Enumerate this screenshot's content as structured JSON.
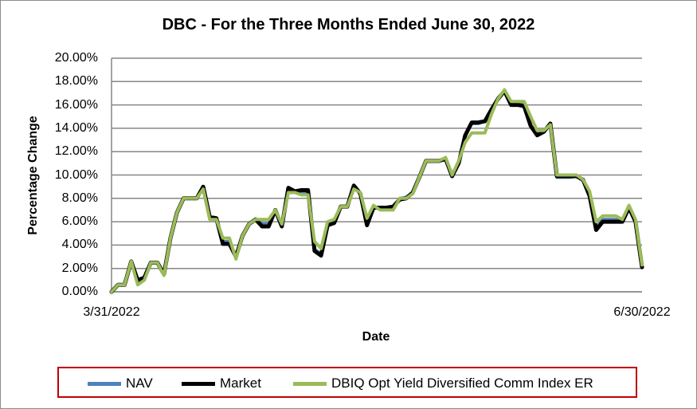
{
  "chart_data": {
    "type": "line",
    "title": "DBC - For the Three Months Ended June 30, 2022",
    "xlabel": "Date",
    "ylabel": "Percentage Change",
    "x_tick_labels": [
      "3/31/2022",
      "6/30/2022"
    ],
    "y_tick_labels": [
      "0.00%",
      "2.00%",
      "4.00%",
      "6.00%",
      "8.00%",
      "10.00%",
      "12.00%",
      "14.00%",
      "16.00%",
      "18.00%",
      "20.00%"
    ],
    "ylim": [
      0,
      20
    ],
    "grid": "horizontal",
    "legend_position": "bottom",
    "series": [
      {
        "name": "NAV",
        "color": "#4f81bd",
        "values": [
          0.0,
          0.6,
          0.6,
          2.6,
          0.8,
          1.0,
          2.5,
          2.5,
          1.5,
          4.6,
          6.8,
          8.0,
          8.0,
          8.0,
          9.0,
          6.3,
          6.3,
          4.3,
          4.3,
          3.0,
          4.8,
          5.8,
          6.2,
          5.8,
          5.8,
          6.9,
          5.8,
          8.8,
          8.5,
          8.5,
          8.5,
          3.6,
          3.3,
          5.8,
          6.0,
          7.3,
          7.3,
          9.1,
          8.4,
          6.0,
          7.3,
          7.1,
          7.1,
          7.2,
          8.0,
          8.1,
          8.5,
          9.8,
          11.2,
          11.2,
          11.2,
          11.3,
          10.0,
          11.0,
          13.4,
          14.4,
          14.4,
          14.6,
          15.6,
          16.6,
          17.2,
          16.1,
          16.1,
          16.0,
          14.2,
          13.5,
          13.8,
          14.3,
          9.8,
          9.8,
          9.8,
          9.9,
          9.5,
          8.2,
          5.5,
          6.2,
          6.2,
          6.2,
          6.0,
          7.3,
          6.1,
          2.2
        ]
      },
      {
        "name": "Market",
        "color": "#000000",
        "values": [
          0.0,
          0.6,
          0.6,
          2.6,
          1.0,
          1.2,
          2.5,
          2.5,
          1.5,
          4.6,
          6.8,
          8.0,
          8.0,
          8.0,
          9.0,
          6.4,
          6.3,
          4.1,
          4.1,
          3.0,
          4.8,
          5.8,
          6.2,
          5.6,
          5.6,
          7.0,
          5.6,
          8.9,
          8.6,
          8.7,
          8.7,
          3.5,
          3.1,
          5.7,
          5.9,
          7.3,
          7.3,
          9.1,
          8.4,
          5.7,
          7.2,
          7.2,
          7.2,
          7.3,
          7.9,
          8.0,
          8.5,
          9.8,
          11.2,
          11.2,
          11.2,
          11.4,
          9.9,
          11.0,
          13.4,
          14.5,
          14.5,
          14.6,
          15.6,
          16.5,
          17.2,
          16.0,
          16.0,
          15.9,
          14.2,
          13.4,
          13.7,
          14.4,
          9.9,
          9.9,
          9.9,
          9.9,
          9.6,
          8.2,
          5.3,
          6.0,
          6.0,
          6.0,
          6.0,
          7.2,
          6.0,
          2.1
        ]
      },
      {
        "name": "DBIQ Opt Yield Diversified Comm Index ER",
        "color": "#9bbb59",
        "values": [
          0.0,
          0.6,
          0.6,
          2.6,
          0.6,
          1.0,
          2.5,
          2.5,
          1.4,
          4.6,
          6.8,
          8.0,
          8.0,
          8.0,
          8.8,
          6.2,
          6.2,
          4.6,
          4.6,
          2.8,
          4.8,
          5.8,
          6.2,
          6.2,
          6.2,
          7.0,
          5.8,
          8.5,
          8.5,
          8.3,
          8.3,
          4.3,
          3.7,
          6.0,
          6.2,
          7.3,
          7.3,
          8.8,
          8.5,
          6.3,
          7.4,
          7.0,
          7.0,
          7.0,
          8.0,
          8.0,
          8.4,
          9.8,
          11.2,
          11.2,
          11.2,
          11.5,
          10.0,
          11.2,
          12.8,
          13.6,
          13.6,
          13.6,
          15.2,
          16.5,
          17.3,
          16.3,
          16.3,
          16.3,
          15.0,
          13.8,
          13.8,
          14.3,
          10.0,
          10.0,
          10.0,
          10.0,
          9.6,
          8.6,
          6.0,
          6.5,
          6.5,
          6.5,
          6.2,
          7.4,
          6.2,
          2.3
        ]
      }
    ]
  }
}
